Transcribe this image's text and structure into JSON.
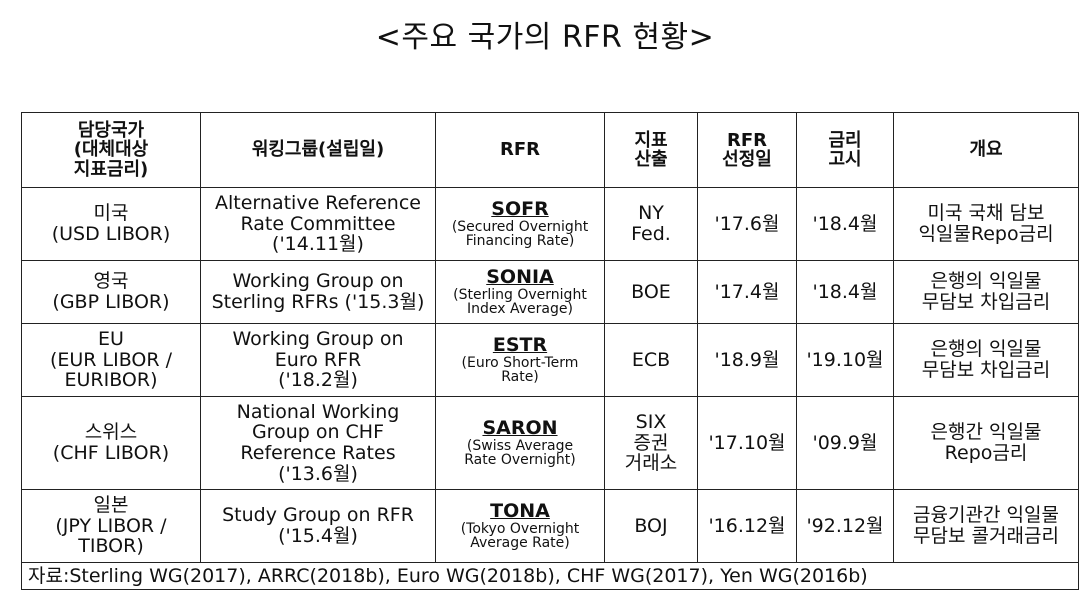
{
  "title": "<주요 국가의 RFR 현황>",
  "headers": {
    "country": [
      "담당국가",
      "(대체대상",
      "지표금리)"
    ],
    "group": "워킹그룹(설립일)",
    "rfr": "RFR",
    "calc": [
      "지표",
      "산출"
    ],
    "selected": [
      "RFR",
      "선정일"
    ],
    "notice": [
      "금리",
      "고시"
    ],
    "overview": "개요"
  },
  "rows": [
    {
      "country": [
        "미국",
        "(USD LIBOR)"
      ],
      "group": [
        "Alternative Reference",
        "Rate Committee",
        "('14.11월)"
      ],
      "rfr_name": "SOFR",
      "rfr_desc": [
        "(Secured Overnight",
        "Financing Rate)"
      ],
      "calc": [
        "NY",
        "Fed."
      ],
      "selected": "'17.6월",
      "notice": "'18.4월",
      "overview": [
        "미국 국채 담보",
        "익일물Repo금리"
      ]
    },
    {
      "country": [
        "영국",
        "(GBP LIBOR)"
      ],
      "group": [
        "Working Group on",
        "Sterling RFRs ('15.3월)"
      ],
      "rfr_name": "SONIA",
      "rfr_desc": [
        "(Sterling Overnight",
        "Index Average)"
      ],
      "calc": [
        "BOE"
      ],
      "selected": "'17.4월",
      "notice": "'18.4월",
      "overview": [
        "은행의 익일물",
        "무담보 차입금리"
      ]
    },
    {
      "country": [
        "EU",
        "(EUR LIBOR /",
        "EURIBOR)"
      ],
      "group": [
        "Working Group on",
        "Euro RFR",
        "('18.2월)"
      ],
      "rfr_name": "ESTR",
      "rfr_desc": [
        "(Euro Short-Term",
        "Rate)"
      ],
      "calc": [
        "ECB"
      ],
      "selected": "'18.9월",
      "notice": "'19.10월",
      "overview": [
        "은행의 익일물",
        "무담보 차입금리"
      ]
    },
    {
      "country": [
        "스위스",
        "(CHF LIBOR)"
      ],
      "group": [
        "National Working",
        "Group on CHF",
        "Reference Rates",
        "('13.6월)"
      ],
      "rfr_name": "SARON",
      "rfr_desc": [
        "(Swiss Average",
        "Rate Overnight)"
      ],
      "calc": [
        "SIX",
        "증권",
        "거래소"
      ],
      "selected": "'17.10월",
      "notice": "'09.9월",
      "overview": [
        "은행간 익일물",
        "Repo금리"
      ]
    },
    {
      "country": [
        "일본",
        "(JPY LIBOR /",
        "TIBOR)"
      ],
      "group": [
        "Study Group on RFR",
        "('15.4월)"
      ],
      "rfr_name": "TONA",
      "rfr_desc": [
        "(Tokyo Overnight",
        "Average Rate)"
      ],
      "calc": [
        "BOJ"
      ],
      "selected": "'16.12월",
      "notice": "'92.12월",
      "overview": [
        "금융기관간 익일물",
        "무담보 콜거래금리"
      ]
    }
  ],
  "source": "자료:Sterling WG(2017), ARRC(2018b), Euro WG(2018b), CHF WG(2017), Yen WG(2016b)"
}
